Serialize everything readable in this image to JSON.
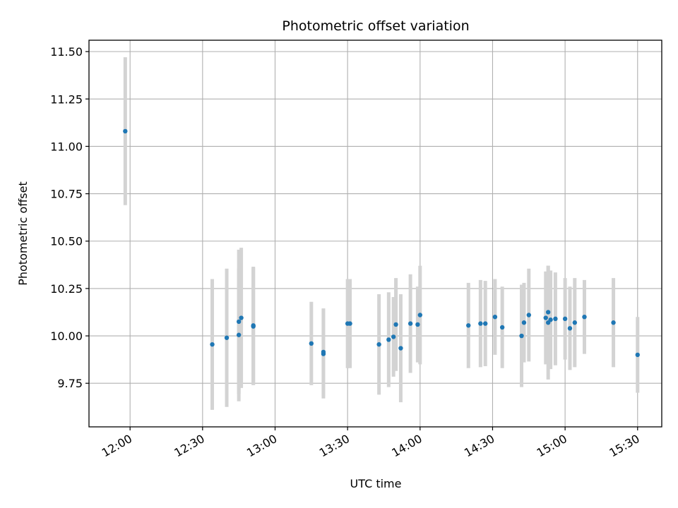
{
  "chart_data": {
    "type": "scatter",
    "title": "Photometric offset variation",
    "xlabel": "UTC time",
    "ylabel": "Photometric offset",
    "x_axis_type": "time",
    "xlim": [
      "11:43",
      "15:40"
    ],
    "ylim": [
      9.52,
      11.56
    ],
    "xticks": [
      "12:00",
      "12:30",
      "13:00",
      "13:30",
      "14:00",
      "14:30",
      "15:00",
      "15:30"
    ],
    "yticks": [
      9.75,
      10.0,
      10.25,
      10.5,
      10.75,
      11.0,
      11.25,
      11.5
    ],
    "ytick_labels": [
      "9.75",
      "10.00",
      "10.25",
      "10.50",
      "10.75",
      "11.00",
      "11.25",
      "11.50"
    ],
    "grid": true,
    "marker_color": "#1f77b4",
    "errorbar_color": "#d3d3d3",
    "points": [
      {
        "x": "11:58",
        "y": 11.08,
        "err": 0.39
      },
      {
        "x": "12:34",
        "y": 9.955,
        "err": 0.345
      },
      {
        "x": "12:40",
        "y": 9.99,
        "err": 0.365
      },
      {
        "x": "12:45",
        "y": 10.005,
        "err": 0.35
      },
      {
        "x": "12:45",
        "y": 10.075,
        "err": 0.38
      },
      {
        "x": "12:46",
        "y": 10.095,
        "err": 0.37
      },
      {
        "x": "12:51",
        "y": 10.055,
        "err": 0.31
      },
      {
        "x": "12:51",
        "y": 10.05,
        "err": 0.31
      },
      {
        "x": "13:15",
        "y": 9.96,
        "err": 0.22
      },
      {
        "x": "13:20",
        "y": 9.915,
        "err": 0.23
      },
      {
        "x": "13:20",
        "y": 9.905,
        "err": 0.235
      },
      {
        "x": "13:30",
        "y": 10.065,
        "err": 0.235
      },
      {
        "x": "13:31",
        "y": 10.065,
        "err": 0.235
      },
      {
        "x": "13:43",
        "y": 9.955,
        "err": 0.265
      },
      {
        "x": "13:47",
        "y": 9.98,
        "err": 0.25
      },
      {
        "x": "13:49",
        "y": 9.995,
        "err": 0.21
      },
      {
        "x": "13:50",
        "y": 10.06,
        "err": 0.245
      },
      {
        "x": "13:52",
        "y": 9.935,
        "err": 0.285
      },
      {
        "x": "13:56",
        "y": 10.065,
        "err": 0.26
      },
      {
        "x": "13:59",
        "y": 10.06,
        "err": 0.2
      },
      {
        "x": "14:00",
        "y": 10.11,
        "err": 0.26
      },
      {
        "x": "14:20",
        "y": 10.055,
        "err": 0.225
      },
      {
        "x": "14:25",
        "y": 10.065,
        "err": 0.23
      },
      {
        "x": "14:27",
        "y": 10.065,
        "err": 0.225
      },
      {
        "x": "14:31",
        "y": 10.1,
        "err": 0.2
      },
      {
        "x": "14:34",
        "y": 10.045,
        "err": 0.215
      },
      {
        "x": "14:42",
        "y": 10.0,
        "err": 0.27
      },
      {
        "x": "14:43",
        "y": 10.07,
        "err": 0.21
      },
      {
        "x": "14:45",
        "y": 10.11,
        "err": 0.245
      },
      {
        "x": "14:52",
        "y": 10.095,
        "err": 0.245
      },
      {
        "x": "14:53",
        "y": 10.07,
        "err": 0.3
      },
      {
        "x": "14:53",
        "y": 10.125,
        "err": 0.245
      },
      {
        "x": "14:54",
        "y": 10.085,
        "err": 0.26
      },
      {
        "x": "14:56",
        "y": 10.09,
        "err": 0.245
      },
      {
        "x": "15:00",
        "y": 10.09,
        "err": 0.215
      },
      {
        "x": "15:02",
        "y": 10.04,
        "err": 0.22
      },
      {
        "x": "15:04",
        "y": 10.07,
        "err": 0.235
      },
      {
        "x": "15:08",
        "y": 10.1,
        "err": 0.195
      },
      {
        "x": "15:20",
        "y": 10.07,
        "err": 0.235
      },
      {
        "x": "15:30",
        "y": 9.9,
        "err": 0.2
      }
    ]
  }
}
